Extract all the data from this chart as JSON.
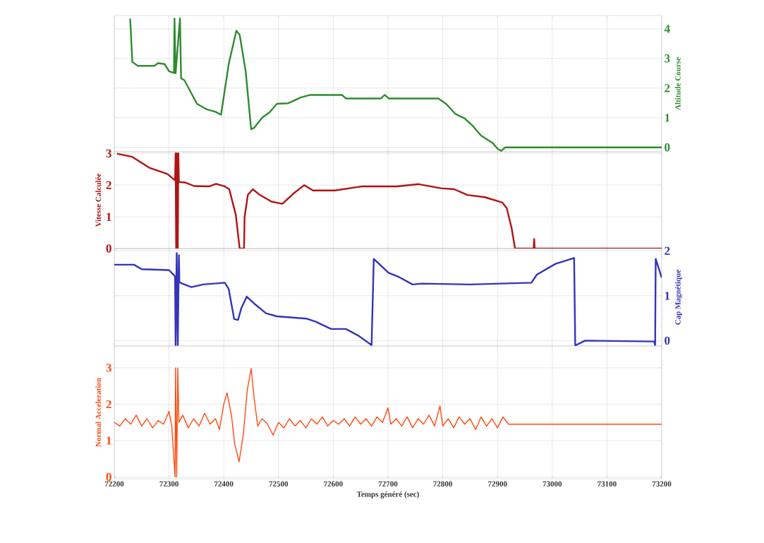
{
  "chart_data": [
    {
      "type": "line",
      "ylabel": "Altitude Course",
      "tick_labels": "y",
      "grid": true,
      "xlim": [
        72200,
        73200
      ],
      "xticks": [
        72200,
        72300,
        72400,
        72500,
        72600,
        72700,
        72800,
        72900,
        73000,
        73100,
        73200
      ],
      "ylim": [
        -0.15,
        4.45
      ],
      "yticks": [
        0,
        1,
        2,
        3,
        4
      ],
      "x": [
        72229,
        72233,
        72243,
        72273,
        72280,
        72292,
        72300,
        72309,
        72310,
        72312,
        72320,
        72322,
        72328,
        72351,
        72368,
        72385,
        72395,
        72409,
        72423,
        72429,
        72440,
        72450,
        72456,
        72470,
        72484,
        72497,
        72518,
        72541,
        72558,
        72616,
        72623,
        72687,
        72694,
        72701,
        72792,
        72806,
        72823,
        72840,
        72853,
        72870,
        72891,
        72901,
        72907,
        72914,
        73200
      ],
      "series": [
        {
          "color": "#2e8b2e",
          "values": [
            4.35,
            2.88,
            2.75,
            2.75,
            2.84,
            2.81,
            2.57,
            2.51,
            4.35,
            2.5,
            4.35,
            2.33,
            2.27,
            1.47,
            1.29,
            1.2,
            1.1,
            2.81,
            3.94,
            3.8,
            2.57,
            0.61,
            0.67,
            1.0,
            1.19,
            1.47,
            1.49,
            1.69,
            1.77,
            1.77,
            1.65,
            1.65,
            1.77,
            1.65,
            1.65,
            1.47,
            1.13,
            0.98,
            0.76,
            0.4,
            0.15,
            -0.06,
            -0.12,
            0,
            0
          ]
        }
      ]
    },
    {
      "type": "line",
      "ylabel": "Vitesse Calculée",
      "tick_labels": "y",
      "grid": true,
      "xlim": [
        72200,
        73200
      ],
      "xticks": [
        72200,
        72300,
        72400,
        72500,
        72600,
        72700,
        72800,
        72900,
        73000,
        73100,
        73200
      ],
      "ylim": [
        0,
        3.05
      ],
      "yticks": [
        0,
        1,
        2,
        3
      ],
      "x": [
        72205,
        72233,
        72265,
        72297,
        72311,
        72312,
        72313,
        72314,
        72316,
        72317,
        72318,
        72330,
        72346,
        72374,
        72386,
        72402,
        72410,
        72422,
        72429,
        72437,
        72438,
        72444,
        72453,
        72466,
        72487,
        72507,
        72527,
        72547,
        72563,
        72603,
        72652,
        72716,
        72756,
        72797,
        72821,
        72845,
        72877,
        72909,
        72917,
        72926,
        72932,
        72966,
        72967,
        72968,
        73200
      ],
      "series": [
        {
          "color": "#b01414",
          "values": [
            2.99,
            2.89,
            2.54,
            2.35,
            2.15,
            3,
            0,
            3,
            0,
            3,
            2.1,
            2.08,
            1.97,
            1.96,
            2.04,
            1.96,
            1.87,
            1.06,
            0,
            0,
            0.99,
            1.69,
            1.87,
            1.69,
            1.48,
            1.41,
            1.73,
            2.0,
            1.83,
            1.83,
            1.96,
            1.96,
            2.03,
            1.9,
            1.87,
            1.69,
            1.62,
            1.45,
            1.27,
            0.63,
            0,
            0,
            0.3,
            0,
            0
          ]
        }
      ]
    },
    {
      "type": "line",
      "ylabel": "Cap Magnétique",
      "tick_labels": "y",
      "grid": true,
      "xlim": [
        72200,
        73200
      ],
      "xticks": [
        72200,
        72300,
        72400,
        72500,
        72600,
        72700,
        72800,
        72900,
        73000,
        73100,
        73200
      ],
      "ylim": [
        -0.12,
        2.05
      ],
      "yticks": [
        0,
        1,
        2
      ],
      "x": [
        72200,
        72236,
        72250,
        72300,
        72311,
        72312,
        72314,
        72316,
        72318,
        72319,
        72324,
        72341,
        72362,
        72402,
        72409,
        72419,
        72426,
        72432,
        72442,
        72456,
        72477,
        72497,
        72551,
        72568,
        72596,
        72623,
        72646,
        72670,
        72674,
        72701,
        72721,
        72745,
        72762,
        72850,
        72962,
        72972,
        73006,
        73040,
        73042,
        73060,
        73186,
        73188,
        73189,
        73200
      ],
      "series": [
        {
          "color": "#3434bb",
          "values": [
            1.69,
            1.69,
            1.59,
            1.57,
            1.43,
            -0.1,
            1.95,
            -0.1,
            1.9,
            1.3,
            1.27,
            1.19,
            1.25,
            1.29,
            1.15,
            0.48,
            0.46,
            0.72,
            0.98,
            0.82,
            0.61,
            0.54,
            0.49,
            0.42,
            0.26,
            0.26,
            0.11,
            -0.1,
            1.82,
            1.51,
            1.41,
            1.25,
            1.27,
            1.25,
            1.29,
            1.47,
            1.71,
            1.84,
            -0.11,
            0,
            -0.02,
            -0.1,
            1.82,
            1.4
          ]
        }
      ]
    },
    {
      "type": "line",
      "ylabel": "Normal Acceleration",
      "xlabel": "Temps généré (sec)",
      "grid": true,
      "xlim": [
        72200,
        73200
      ],
      "xticks": [
        72200,
        72300,
        72400,
        72500,
        72600,
        72700,
        72800,
        72900,
        73000,
        73100,
        73200
      ],
      "ylim": [
        -0.05,
        3.6
      ],
      "yticks": [
        0,
        1,
        2,
        3
      ],
      "x": [
        72200,
        72210,
        72220,
        72230,
        72240,
        72250,
        72260,
        72270,
        72280,
        72290,
        72300,
        72305,
        72311,
        72312,
        72314,
        72316,
        72318,
        72325,
        72335,
        72345,
        72355,
        72365,
        72375,
        72385,
        72392,
        72400,
        72406,
        72414,
        72420,
        72428,
        72436,
        72443,
        72450,
        72456,
        72462,
        72470,
        72480,
        72490,
        72500,
        72510,
        72520,
        72530,
        72540,
        72550,
        72560,
        72570,
        72580,
        72590,
        72600,
        72610,
        72620,
        72630,
        72640,
        72650,
        72660,
        72670,
        72680,
        72690,
        72700,
        72705,
        72715,
        72725,
        72735,
        72745,
        72755,
        72765,
        72775,
        72785,
        72795,
        72800,
        72810,
        72820,
        72830,
        72840,
        72850,
        72860,
        72870,
        72880,
        72890,
        72900,
        72910,
        72920,
        73200
      ],
      "series": [
        {
          "color": "#ff4a10",
          "values": [
            1.5,
            1.4,
            1.6,
            1.45,
            1.7,
            1.4,
            1.6,
            1.35,
            1.55,
            1.45,
            1.8,
            1.4,
            0,
            3,
            0,
            3,
            1.5,
            1.7,
            1.35,
            1.6,
            1.4,
            1.75,
            1.45,
            1.6,
            1.3,
            2.0,
            2.31,
            1.7,
            0.9,
            0.42,
            1.2,
            2.4,
            2.98,
            2.1,
            1.4,
            1.6,
            1.45,
            1.15,
            1.5,
            1.35,
            1.6,
            1.4,
            1.55,
            1.35,
            1.6,
            1.45,
            1.65,
            1.4,
            1.55,
            1.45,
            1.6,
            1.4,
            1.65,
            1.45,
            1.6,
            1.4,
            1.65,
            1.5,
            1.9,
            1.45,
            1.6,
            1.4,
            1.65,
            1.35,
            1.6,
            1.45,
            1.7,
            1.4,
            1.95,
            1.4,
            1.6,
            1.35,
            1.65,
            1.45,
            1.6,
            1.3,
            1.65,
            1.4,
            1.6,
            1.35,
            1.65,
            1.45,
            1.45
          ]
        }
      ]
    }
  ]
}
